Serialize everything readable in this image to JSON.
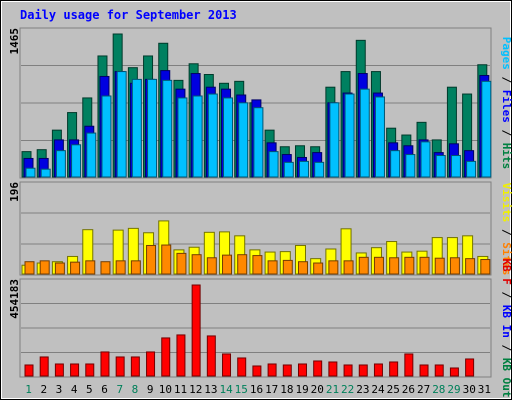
{
  "chart_data": [
    {
      "type": "bar",
      "title": "Daily usage for September 2013",
      "panel": "top",
      "ymax_label": "1465",
      "ylim": [
        0,
        1465
      ],
      "categories": [
        "1",
        "2",
        "3",
        "4",
        "5",
        "6",
        "7",
        "8",
        "9",
        "10",
        "11",
        "12",
        "13",
        "14",
        "15",
        "16",
        "17",
        "18",
        "19",
        "20",
        "21",
        "22",
        "23",
        "24",
        "25",
        "26",
        "27",
        "28",
        "29",
        "30",
        "31"
      ],
      "weekend_days": [
        "1",
        "7",
        "8",
        "14",
        "15",
        "21",
        "22",
        "28",
        "29"
      ],
      "right_label_parts": [
        {
          "text": "Pages",
          "color": "#00c0ff"
        },
        {
          "text": " / ",
          "color": "#000000"
        },
        {
          "text": "Files",
          "color": "#0000ff"
        },
        {
          "text": " / ",
          "color": "#000000"
        },
        {
          "text": "Hits",
          "color": "#008040"
        }
      ],
      "series": [
        {
          "name": "Hits",
          "color": "#008060",
          "values": [
            260,
            280,
            480,
            660,
            810,
            1240,
            1465,
            1120,
            1240,
            1370,
            990,
            1160,
            1050,
            960,
            980,
            760,
            480,
            310,
            320,
            310,
            920,
            1080,
            1400,
            1080,
            500,
            430,
            560,
            380,
            920,
            850,
            1150
          ]
        },
        {
          "name": "Files",
          "color": "#0000e0",
          "values": [
            190,
            190,
            380,
            380,
            520,
            1030,
            1080,
            960,
            1000,
            1090,
            900,
            1060,
            920,
            900,
            840,
            790,
            350,
            230,
            200,
            250,
            760,
            860,
            1060,
            860,
            350,
            320,
            380,
            250,
            340,
            270,
            1040
          ]
        },
        {
          "name": "Pages",
          "color": "#00c0ff",
          "values": [
            90,
            80,
            270,
            330,
            450,
            830,
            1080,
            1000,
            1000,
            990,
            810,
            830,
            850,
            810,
            760,
            710,
            260,
            150,
            160,
            150,
            760,
            850,
            900,
            820,
            270,
            230,
            360,
            220,
            220,
            160,
            980
          ]
        }
      ]
    },
    {
      "type": "bar",
      "panel": "middle",
      "ymax_label": "196",
      "ylim": [
        0,
        196
      ],
      "right_label_parts": [
        {
          "text": "Visits",
          "color": "#f0f000"
        },
        {
          "text": " / ",
          "color": "#000000"
        },
        {
          "text": "Sites",
          "color": "#ff8000"
        }
      ],
      "series": [
        {
          "name": "Visits",
          "color": "#ffff00",
          "values": [
            20,
            25,
            28,
            40,
            101,
            0,
            100,
            104,
            94,
            121,
            55,
            61,
            95,
            96,
            87,
            55,
            50,
            51,
            65,
            35,
            57,
            103,
            48,
            60,
            74,
            50,
            52,
            83,
            83,
            87,
            40
          ]
        },
        {
          "name": "Sites",
          "color": "#ff8800",
          "values": [
            28,
            30,
            25,
            27,
            30,
            28,
            30,
            30,
            65,
            66,
            47,
            44,
            37,
            43,
            44,
            42,
            30,
            31,
            28,
            25,
            30,
            30,
            38,
            38,
            37,
            38,
            38,
            36,
            37,
            35,
            33
          ]
        }
      ]
    },
    {
      "type": "bar",
      "panel": "bottom",
      "ymax_label": "454183",
      "ylim": [
        0,
        454183
      ],
      "right_label_parts": [
        {
          "text": "KB F",
          "color": "#e00000"
        },
        {
          "text": " / ",
          "color": "#000000"
        },
        {
          "text": "KB In",
          "color": "#0000ff"
        },
        {
          "text": " / ",
          "color": "#000000"
        },
        {
          "text": "KB Out",
          "color": "#008040"
        }
      ],
      "series": [
        {
          "name": "KB F",
          "color": "#ff0000",
          "values": [
            55000,
            95000,
            60000,
            60000,
            60000,
            120000,
            95000,
            95000,
            120000,
            190000,
            205000,
            454183,
            200000,
            110000,
            90000,
            50000,
            60000,
            55000,
            60000,
            75000,
            70000,
            55000,
            55000,
            60000,
            70000,
            110000,
            55000,
            55000,
            40000,
            85000,
            0
          ]
        }
      ]
    }
  ]
}
